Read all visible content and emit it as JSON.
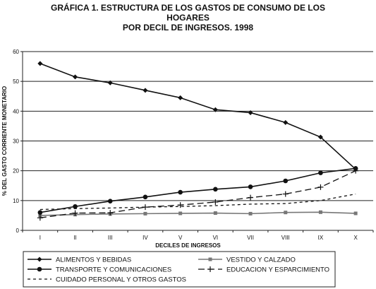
{
  "title": {
    "line1": "GRÁFICA 1. ESTRUCTURA DE LOS GASTOS DE CONSUMO DE LOS",
    "line2": "HOGARES",
    "line3": "POR DECIL DE INGRESOS. 1998"
  },
  "chart_data": {
    "type": "line",
    "title": "GRÁFICA 1. ESTRUCTURA DE LOS GASTOS DE CONSUMO DE LOS HOGARES POR DECIL DE INGRESOS. 1998",
    "xlabel": "DECILES DE INGRESOS",
    "ylabel": "% DEL GASTO CORRIENTE MONETARIO",
    "categories": [
      "I",
      "II",
      "III",
      "IV",
      "V",
      "VI",
      "VII",
      "VIII",
      "IX",
      "X"
    ],
    "ylim": [
      0,
      60
    ],
    "yticks": [
      0,
      10,
      20,
      30,
      40,
      50,
      60
    ],
    "grid": "horizontal",
    "legend_position": "bottom",
    "series": [
      {
        "name": "ALIMENTOS Y BEBIDAS",
        "values": [
          56.0,
          51.5,
          49.5,
          47.0,
          44.5,
          40.5,
          39.5,
          36.2,
          31.3,
          20.5
        ],
        "style": "solid",
        "marker": "diamond",
        "color": "#111111"
      },
      {
        "name": "VESTIDO Y CALZADO",
        "values": [
          5.0,
          5.3,
          5.5,
          5.6,
          5.7,
          5.8,
          5.6,
          6.0,
          6.1,
          5.7
        ],
        "style": "solid",
        "marker": "square",
        "color": "#777777"
      },
      {
        "name": "TRANSPORTE Y COMUNICACIONES",
        "values": [
          6.0,
          8.0,
          9.8,
          11.2,
          12.8,
          13.8,
          14.6,
          16.6,
          19.3,
          20.8
        ],
        "style": "solid",
        "marker": "circle",
        "color": "#111111"
      },
      {
        "name": "EDUCACION Y ESPARCIMIENTO",
        "values": [
          4.2,
          5.8,
          5.9,
          7.8,
          8.5,
          9.5,
          11.0,
          12.2,
          14.5,
          20.0
        ],
        "style": "longdash",
        "marker": "plus",
        "color": "#111111"
      },
      {
        "name": "CUIDADO PERSONAL Y OTROS GASTOS",
        "values": [
          7.0,
          7.3,
          7.5,
          7.8,
          8.0,
          8.3,
          8.8,
          9.0,
          10.0,
          12.2
        ],
        "style": "shortdash",
        "marker": "none",
        "color": "#111111"
      }
    ]
  }
}
